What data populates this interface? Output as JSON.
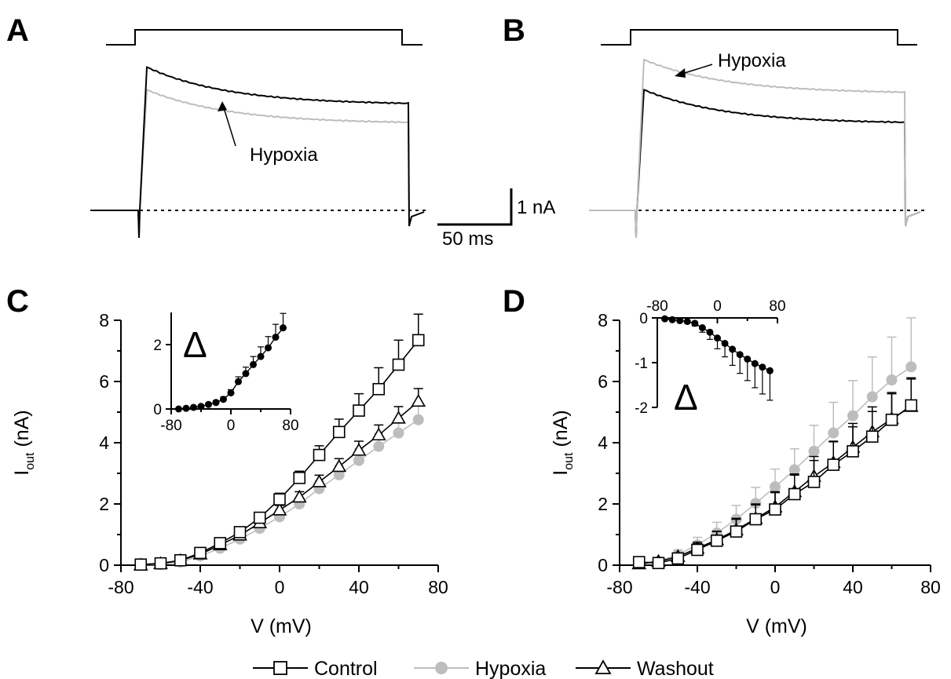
{
  "colors": {
    "control": "#000000",
    "hypoxia": "#bdbdbd",
    "washout": "#000000",
    "axis": "#000000"
  },
  "traces": [
    {
      "label": "A",
      "annotation": "Hypoxia",
      "control": {
        "peak": 3.8,
        "end": 2.8
      },
      "hypoxia": {
        "peak": 3.2,
        "end": 2.3
      }
    },
    {
      "label": "B",
      "annotation": "Hypoxia",
      "control": {
        "peak": 3.2,
        "end": 2.3
      },
      "hypoxia": {
        "peak": 4.0,
        "end": 3.1
      }
    }
  ],
  "scalebar": {
    "current": "1 nA",
    "time": "50 ms"
  },
  "chart_data": [
    {
      "panel": "C",
      "type": "line",
      "xlabel": "V (mV)",
      "ylabel": "I",
      "ylabel_sub": "out",
      "ylabel_unit": " (nA)",
      "xlim": [
        -80,
        80
      ],
      "ylim": [
        0,
        8
      ],
      "xticks": [
        "-80",
        "-40",
        "0",
        "40",
        "80"
      ],
      "yticks": [
        "0",
        "2",
        "4",
        "6",
        "8"
      ],
      "x": [
        -70,
        -60,
        -50,
        -40,
        -30,
        -20,
        -10,
        0,
        10,
        20,
        30,
        40,
        50,
        60,
        70
      ],
      "series": [
        {
          "name": "Control",
          "marker": "open-square",
          "values": [
            0.02,
            0.06,
            0.16,
            0.4,
            0.72,
            1.08,
            1.55,
            2.15,
            2.85,
            3.6,
            4.35,
            5.05,
            5.75,
            6.55,
            7.35
          ],
          "err": [
            0.05,
            0.06,
            0.08,
            0.1,
            0.1,
            0.12,
            0.15,
            0.2,
            0.22,
            0.3,
            0.42,
            0.55,
            0.7,
            0.8,
            0.85
          ]
        },
        {
          "name": "Hypoxia",
          "marker": "filled-circle",
          "values": [
            0.0,
            0.02,
            0.1,
            0.3,
            0.55,
            0.85,
            1.2,
            1.58,
            2.0,
            2.5,
            2.95,
            3.42,
            3.88,
            4.32,
            4.75
          ],
          "err": [
            0.04,
            0.05,
            0.06,
            0.08,
            0.1,
            0.12,
            0.14,
            0.15,
            0.18,
            0.25,
            0.3,
            0.38,
            0.42,
            0.45,
            0.5
          ]
        },
        {
          "name": "Washout",
          "marker": "open-triangle",
          "values": [
            0.0,
            0.05,
            0.15,
            0.36,
            0.66,
            0.98,
            1.38,
            1.8,
            2.22,
            2.72,
            3.22,
            3.75,
            4.25,
            4.8,
            5.35
          ],
          "err": [
            0.04,
            0.05,
            0.07,
            0.09,
            0.1,
            0.12,
            0.14,
            0.15,
            0.18,
            0.22,
            0.26,
            0.3,
            0.33,
            0.38,
            0.42
          ]
        }
      ],
      "inset": {
        "title": "Δ",
        "xlim": [
          -80,
          80
        ],
        "ylim": [
          0,
          3
        ],
        "xticks": [
          "-80",
          "0",
          "80"
        ],
        "yticks": [
          "0",
          "2"
        ],
        "x": [
          -70,
          -60,
          -50,
          -40,
          -30,
          -20,
          -10,
          0,
          10,
          20,
          30,
          40,
          50,
          60,
          70
        ],
        "values": [
          0.0,
          0.02,
          0.05,
          0.08,
          0.14,
          0.2,
          0.3,
          0.5,
          0.85,
          1.1,
          1.38,
          1.63,
          1.9,
          2.23,
          2.52
        ],
        "err": [
          0.02,
          0.02,
          0.03,
          0.04,
          0.05,
          0.06,
          0.08,
          0.1,
          0.15,
          0.2,
          0.25,
          0.3,
          0.35,
          0.4,
          0.45
        ]
      }
    },
    {
      "panel": "D",
      "type": "line",
      "xlabel": "V (mV)",
      "ylabel": "I",
      "ylabel_sub": "out",
      "ylabel_unit": " (nA)",
      "xlim": [
        -80,
        80
      ],
      "ylim": [
        0,
        8
      ],
      "xticks": [
        "-80",
        "-40",
        "0",
        "40",
        "80"
      ],
      "yticks": [
        "0",
        "2",
        "4",
        "6",
        "8"
      ],
      "x": [
        -70,
        -60,
        -50,
        -40,
        -30,
        -20,
        -10,
        0,
        10,
        20,
        30,
        40,
        50,
        60,
        70
      ],
      "series": [
        {
          "name": "Control",
          "marker": "open-square",
          "values": [
            0.1,
            0.07,
            0.22,
            0.5,
            0.8,
            1.1,
            1.5,
            1.82,
            2.32,
            2.72,
            3.28,
            3.72,
            4.2,
            4.75,
            5.22
          ],
          "err": [
            0.05,
            0.08,
            0.12,
            0.2,
            0.3,
            0.4,
            0.5,
            0.55,
            0.62,
            0.7,
            0.75,
            0.8,
            0.82,
            0.85,
            0.9
          ]
        },
        {
          "name": "Hypoxia",
          "marker": "filled-circle",
          "values": [
            0.08,
            0.12,
            0.35,
            0.66,
            1.05,
            1.5,
            2.02,
            2.56,
            3.12,
            3.72,
            4.32,
            4.88,
            5.5,
            6.05,
            6.48
          ],
          "err": [
            0.05,
            0.1,
            0.15,
            0.25,
            0.35,
            0.45,
            0.52,
            0.58,
            0.68,
            0.85,
            1.0,
            1.15,
            1.3,
            1.4,
            1.6
          ]
        },
        {
          "name": "Washout",
          "marker": "open-triangle",
          "values": [
            0.04,
            0.12,
            0.28,
            0.55,
            0.83,
            1.15,
            1.52,
            1.9,
            2.4,
            2.9,
            3.35,
            3.85,
            4.35,
            4.78,
            5.18
          ],
          "err": [
            0.05,
            0.08,
            0.12,
            0.2,
            0.28,
            0.38,
            0.45,
            0.5,
            0.58,
            0.65,
            0.7,
            0.78,
            0.82,
            0.86,
            0.9
          ]
        }
      ],
      "inset": {
        "title": "Δ",
        "xlim": [
          -80,
          80
        ],
        "ylim": [
          -2,
          0
        ],
        "xticks": [
          "-80",
          "0",
          "80"
        ],
        "yticks": [
          "0",
          "-1",
          "-2"
        ],
        "x": [
          -70,
          -60,
          -50,
          -40,
          -30,
          -20,
          -10,
          0,
          10,
          20,
          30,
          40,
          50,
          60,
          70
        ],
        "values": [
          -0.02,
          -0.04,
          -0.06,
          -0.08,
          -0.12,
          -0.22,
          -0.32,
          -0.45,
          -0.57,
          -0.7,
          -0.82,
          -0.92,
          -1.02,
          -1.1,
          -1.18
        ],
        "err": [
          0.01,
          0.02,
          0.03,
          0.04,
          0.06,
          0.1,
          0.16,
          0.24,
          0.3,
          0.36,
          0.42,
          0.48,
          0.54,
          0.6,
          0.66
        ]
      }
    }
  ],
  "legend": [
    {
      "label": "Control",
      "marker": "open-square"
    },
    {
      "label": "Hypoxia",
      "marker": "filled-circle"
    },
    {
      "label": "Washout",
      "marker": "open-triangle"
    }
  ]
}
